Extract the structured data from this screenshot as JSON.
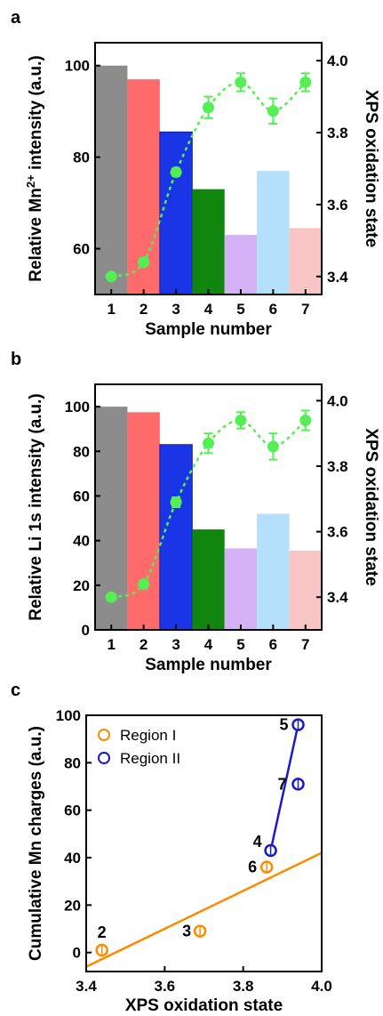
{
  "chart_data": [
    {
      "panel": "a",
      "type": "bar",
      "categories": [
        "1",
        "2",
        "3",
        "4",
        "5",
        "6",
        "7"
      ],
      "values": [
        100,
        97,
        85.5,
        73,
        63,
        77,
        64.5
      ],
      "bar_colors": [
        "#8c8c8c",
        "#ff6b6b",
        "#1a35e6",
        "#11860f",
        "#d4b0f5",
        "#b5e0fb",
        "#f9c4c4"
      ],
      "xlabel": "Sample number",
      "ylabel_parts": [
        "Relative Mn",
        "2+",
        " intensity (a.u.)"
      ],
      "ylim": [
        50,
        105
      ],
      "yticks": [
        "60",
        "80",
        "100"
      ],
      "y2label": "XPS oxidation state",
      "y2lim": [
        3.35,
        4.05
      ],
      "y2ticks": [
        "3.4",
        "3.6",
        "3.8",
        "4.0"
      ],
      "overlay": {
        "type": "scatter-with-error",
        "color": "#55ee55",
        "x": [
          "1",
          "2",
          "3",
          "4",
          "5",
          "6",
          "7"
        ],
        "y": [
          3.4,
          3.44,
          3.69,
          3.87,
          3.94,
          3.86,
          3.94
        ],
        "err": [
          0,
          0.01,
          0.01,
          0.03,
          0.025,
          0.035,
          0.025
        ]
      }
    },
    {
      "panel": "b",
      "type": "bar",
      "categories": [
        "1",
        "2",
        "3",
        "4",
        "5",
        "6",
        "7"
      ],
      "values": [
        100,
        97.5,
        83,
        45,
        36.5,
        52,
        35.5
      ],
      "bar_colors": [
        "#8c8c8c",
        "#ff6b6b",
        "#1a35e6",
        "#11860f",
        "#d4b0f5",
        "#b5e0fb",
        "#f9c4c4"
      ],
      "xlabel": "Sample number",
      "ylabel_parts": [
        "Relative Li 1s intensity (a.u.)"
      ],
      "ylim": [
        0,
        110
      ],
      "yticks": [
        "0",
        "20",
        "40",
        "60",
        "80",
        "100"
      ],
      "y2label": "XPS oxidation state",
      "y2lim": [
        3.3,
        4.05
      ],
      "y2ticks": [
        "3.4",
        "3.6",
        "3.8",
        "4.0"
      ],
      "overlay": {
        "type": "scatter-with-error",
        "color": "#55ee55",
        "x": [
          "1",
          "2",
          "3",
          "4",
          "5",
          "6",
          "7"
        ],
        "y": [
          3.4,
          3.44,
          3.69,
          3.87,
          3.94,
          3.86,
          3.94
        ],
        "err": [
          0,
          0.01,
          0.015,
          0.03,
          0.025,
          0.04,
          0.03
        ]
      }
    },
    {
      "panel": "c",
      "type": "scatter",
      "xlabel": "XPS oxidation state",
      "ylabel": "Cumulative Mn charges (a.u.)",
      "xlim": [
        3.4,
        4.0
      ],
      "ylim": [
        -8,
        100
      ],
      "xticks": [
        "3.4",
        "3.6",
        "3.8",
        "4.0"
      ],
      "yticks": [
        "0",
        "20",
        "40",
        "60",
        "80",
        "100"
      ],
      "legend_position": "upper-left",
      "series": [
        {
          "name": "Region I",
          "color": "#ff8a00",
          "points": [
            {
              "label": "2",
              "x": 3.44,
              "y": 1
            },
            {
              "label": "3",
              "x": 3.69,
              "y": 9
            },
            {
              "label": "6",
              "x": 3.86,
              "y": 36
            }
          ],
          "fit_line": {
            "x": [
              3.4,
              4.0
            ],
            "y": [
              -6,
              42
            ]
          }
        },
        {
          "name": "Region II",
          "color": "#1a1acc",
          "points": [
            {
              "label": "4",
              "x": 3.87,
              "y": 43
            },
            {
              "label": "7",
              "x": 3.94,
              "y": 71
            },
            {
              "label": "5",
              "x": 3.94,
              "y": 96
            }
          ],
          "fit_line": {
            "x": [
              3.87,
              3.94
            ],
            "y": [
              43,
              96
            ]
          }
        }
      ]
    }
  ]
}
